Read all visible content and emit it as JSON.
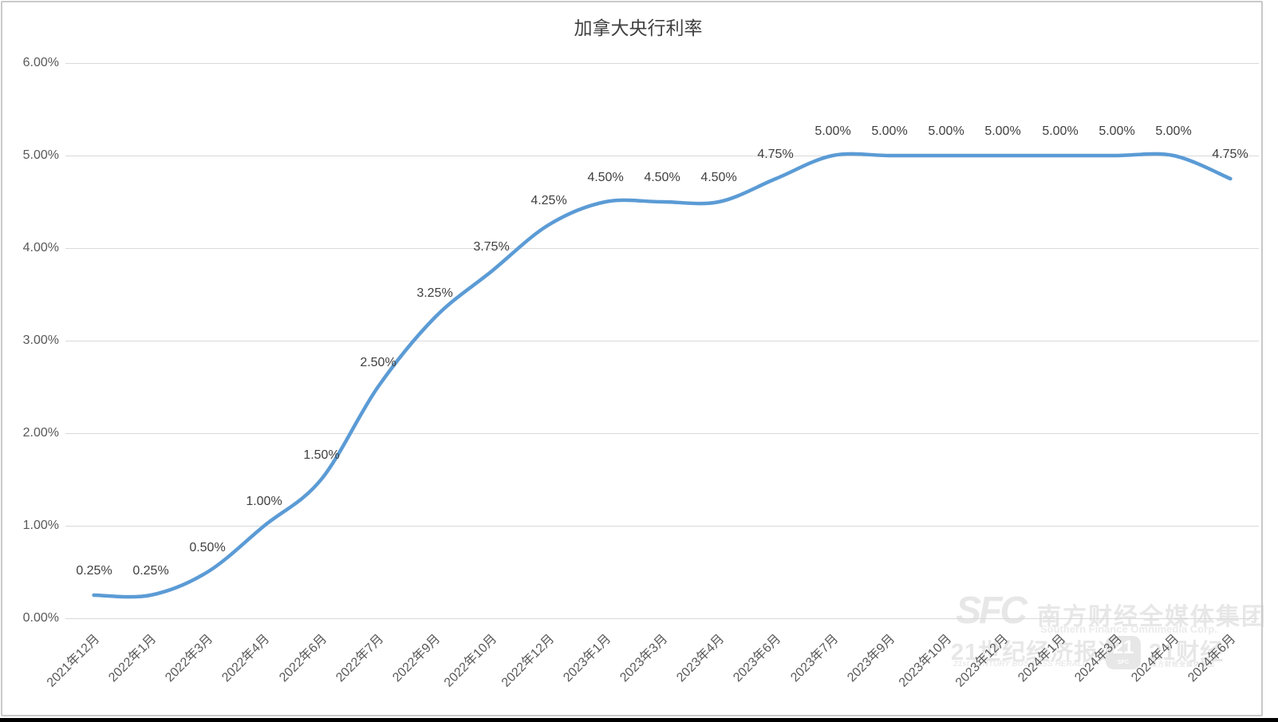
{
  "title": "加拿大央行利率",
  "colors": {
    "line": "#5B9BD5",
    "grid": "#D9D9D9",
    "axis_text": "#595959",
    "data_label_text": "#3F3F3F",
    "title_text": "#3F3F3F",
    "watermark": "#E7E7E7",
    "frame_border": "#C9C9C9",
    "bottom_bar": "#000000"
  },
  "watermark": {
    "sfc_logo": "SFC",
    "org_cn": "南方财经全媒体集团",
    "org_en": "Southern Finance Omnimedia Corp.",
    "herald_cn": "21世纪经济报道",
    "herald_en": "21st CENTURY BUSINESS HERALD",
    "badge_number": "21",
    "badge_sub": "SFC",
    "finance_cn": "21财经",
    "finance_sub": "南方财经全媒体集团"
  },
  "chart_data": {
    "type": "line",
    "title": "加拿大央行利率",
    "xlabel": "",
    "ylabel": "",
    "categories": [
      "2021年12月",
      "2022年1月",
      "2022年3月",
      "2022年4月",
      "2022年6月",
      "2022年7月",
      "2022年9月",
      "2022年10月",
      "2022年12月",
      "2023年1月",
      "2023年3月",
      "2023年4月",
      "2023年6月",
      "2023年7月",
      "2023年9月",
      "2023年10月",
      "2023年12月",
      "2024年1月",
      "2024年3月",
      "2024年4月",
      "2024年6月"
    ],
    "values": [
      0.25,
      0.25,
      0.5,
      1.0,
      1.5,
      2.5,
      3.25,
      3.75,
      4.25,
      4.5,
      4.5,
      4.5,
      4.75,
      5.0,
      5.0,
      5.0,
      5.0,
      5.0,
      5.0,
      5.0,
      4.75
    ],
    "data_labels": [
      "0.25%",
      "0.25%",
      "0.50%",
      "1.00%",
      "1.50%",
      "2.50%",
      "3.25%",
      "3.75%",
      "4.25%",
      "4.50%",
      "4.50%",
      "4.50%",
      "4.75%",
      "5.00%",
      "5.00%",
      "5.00%",
      "5.00%",
      "5.00%",
      "5.00%",
      "5.00%",
      "4.75%"
    ],
    "ylim": [
      0,
      6
    ],
    "ytick_values": [
      0,
      1,
      2,
      3,
      4,
      5,
      6
    ],
    "ytick_labels": [
      "0.00%",
      "1.00%",
      "2.00%",
      "3.00%",
      "4.00%",
      "5.00%",
      "6.00%"
    ],
    "grid": true,
    "legend": false,
    "smooth": true,
    "line_color": "#5B9BD5",
    "line_width": 4.5
  }
}
